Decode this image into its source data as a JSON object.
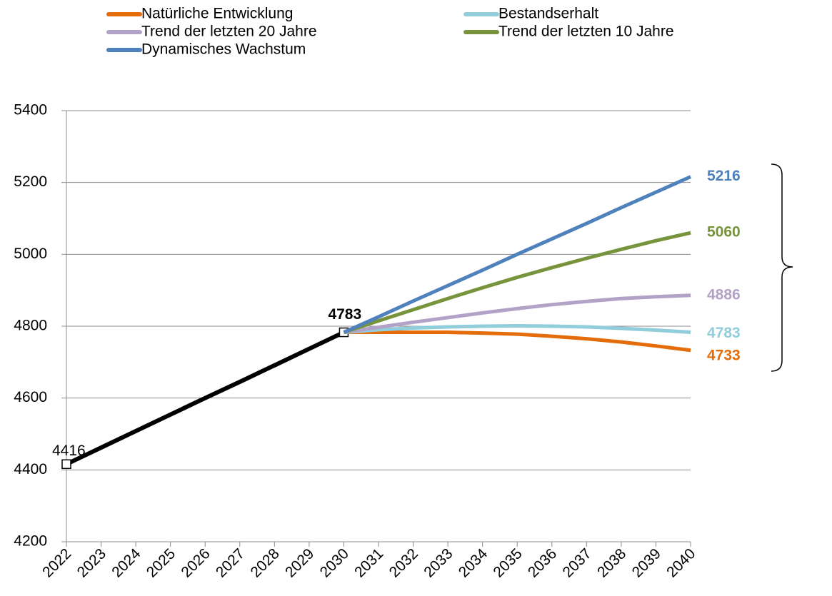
{
  "chart_data": {
    "type": "line",
    "x": [
      2022,
      2023,
      2024,
      2025,
      2026,
      2027,
      2028,
      2029,
      2030,
      2031,
      2032,
      2033,
      2034,
      2035,
      2036,
      2037,
      2038,
      2039,
      2040
    ],
    "xlim": [
      2022,
      2040
    ],
    "xticks": [
      2022,
      2023,
      2024,
      2025,
      2026,
      2027,
      2028,
      2029,
      2030,
      2031,
      2032,
      2033,
      2034,
      2035,
      2036,
      2037,
      2038,
      2039,
      2040
    ],
    "ylim": [
      4200,
      5400
    ],
    "yticks": [
      4200,
      4400,
      4600,
      4800,
      5000,
      5200,
      5400
    ],
    "grid": true,
    "series": [
      {
        "name": "Natürliche Entwicklung",
        "color": "#e46c0a",
        "values": [
          null,
          null,
          null,
          null,
          null,
          null,
          null,
          null,
          4783,
          4783,
          4783,
          4783,
          4781,
          4778,
          4772,
          4765,
          4756,
          4745,
          4733
        ]
      },
      {
        "name": "Bestandserhalt",
        "color": "#92cddc",
        "values": [
          null,
          null,
          null,
          null,
          null,
          null,
          null,
          null,
          4783,
          4790,
          4795,
          4798,
          4800,
          4801,
          4800,
          4798,
          4794,
          4789,
          4783
        ]
      },
      {
        "name": "Trend der letzten 20 Jahre",
        "color": "#b3a2c7",
        "values": [
          null,
          null,
          null,
          null,
          null,
          null,
          null,
          null,
          4783,
          4797,
          4811,
          4824,
          4837,
          4849,
          4860,
          4869,
          4877,
          4882,
          4886
        ]
      },
      {
        "name": "Trend der letzten 10 Jahre",
        "color": "#77933c",
        "values": [
          null,
          null,
          null,
          null,
          null,
          null,
          null,
          null,
          4783,
          4815,
          4846,
          4877,
          4907,
          4936,
          4963,
          4989,
          5014,
          5038,
          5060
        ]
      },
      {
        "name": "Dynamisches Wachstum",
        "color": "#4f81bd",
        "values": [
          null,
          null,
          null,
          null,
          null,
          null,
          null,
          null,
          4783,
          4826,
          4870,
          4913,
          4956,
          5000,
          5043,
          5086,
          5130,
          5173,
          5216
        ]
      },
      {
        "color": "#000000",
        "values": [
          4416,
          4462,
          4508,
          4554,
          4600,
          4645,
          4691,
          4737,
          4783,
          null,
          null,
          null,
          null,
          null,
          null,
          null,
          null,
          null,
          null
        ]
      }
    ]
  }
}
